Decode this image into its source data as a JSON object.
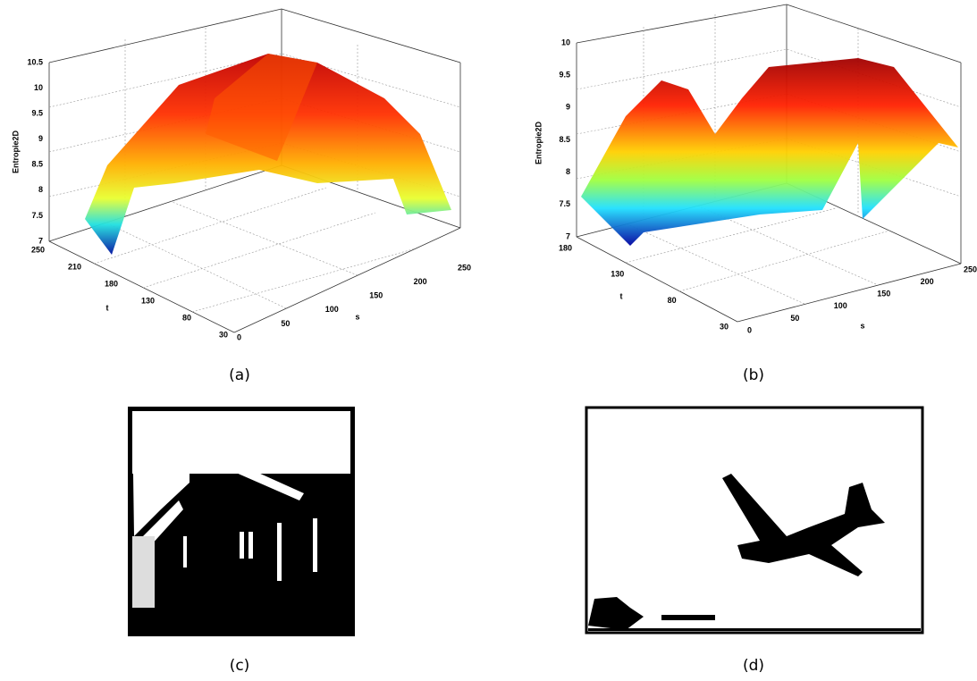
{
  "panels": [
    {
      "caption": "(a)",
      "z_label": "Entropie2D",
      "z_ticks": [
        "7",
        "7.5",
        "8",
        "8.5",
        "9",
        "9.5",
        "10",
        "10.5"
      ],
      "t_label": "t",
      "t_ticks": [
        "250",
        "210",
        "180",
        "130",
        "80",
        "30"
      ],
      "s_label": "s",
      "s_ticks": [
        "0",
        "50",
        "100",
        "150",
        "200",
        "250"
      ]
    },
    {
      "caption": "(b)",
      "z_label": "Entropie2D",
      "z_ticks": [
        "7",
        "7.5",
        "8",
        "8.5",
        "9",
        "9.5",
        "10"
      ],
      "t_label": "t",
      "t_ticks": [
        "180",
        "130",
        "80",
        "30"
      ],
      "s_label": "s",
      "s_ticks": [
        "0",
        "50",
        "100",
        "150",
        "200",
        "250"
      ]
    },
    {
      "caption": "(c)"
    },
    {
      "caption": "(d)"
    }
  ]
}
